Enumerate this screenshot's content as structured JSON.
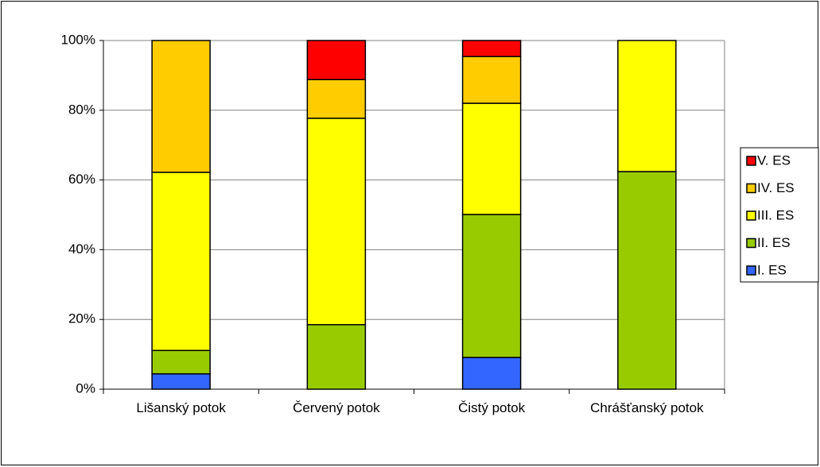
{
  "chart_data": {
    "type": "stacked_bar_100",
    "categories": [
      "Lišanský potok",
      "Červený potok",
      "Čistý potok",
      "Chrášťanský potok"
    ],
    "series": [
      {
        "name": "I. ES",
        "color": "#3366ff",
        "values": [
          4.4,
          0,
          9.1,
          0
        ]
      },
      {
        "name": "II. ES",
        "color": "#99cc00",
        "values": [
          6.7,
          18.5,
          41.0,
          62.4
        ]
      },
      {
        "name": "III. ES",
        "color": "#ffff00",
        "values": [
          51.1,
          59.2,
          31.9,
          37.6
        ]
      },
      {
        "name": "IV. ES",
        "color": "#ffcc00",
        "values": [
          37.8,
          11.1,
          13.4,
          0
        ]
      },
      {
        "name": "V. ES",
        "color": "#ff0000",
        "values": [
          0,
          11.2,
          4.6,
          0
        ]
      }
    ],
    "ylim": [
      0,
      100
    ],
    "yticks": [
      {
        "value": 0,
        "label": "0%"
      },
      {
        "value": 20,
        "label": "20%"
      },
      {
        "value": 40,
        "label": "40%"
      },
      {
        "value": 60,
        "label": "60%"
      },
      {
        "value": 80,
        "label": "80%"
      },
      {
        "value": 100,
        "label": "100%"
      }
    ],
    "grid": true,
    "legend": "right"
  }
}
